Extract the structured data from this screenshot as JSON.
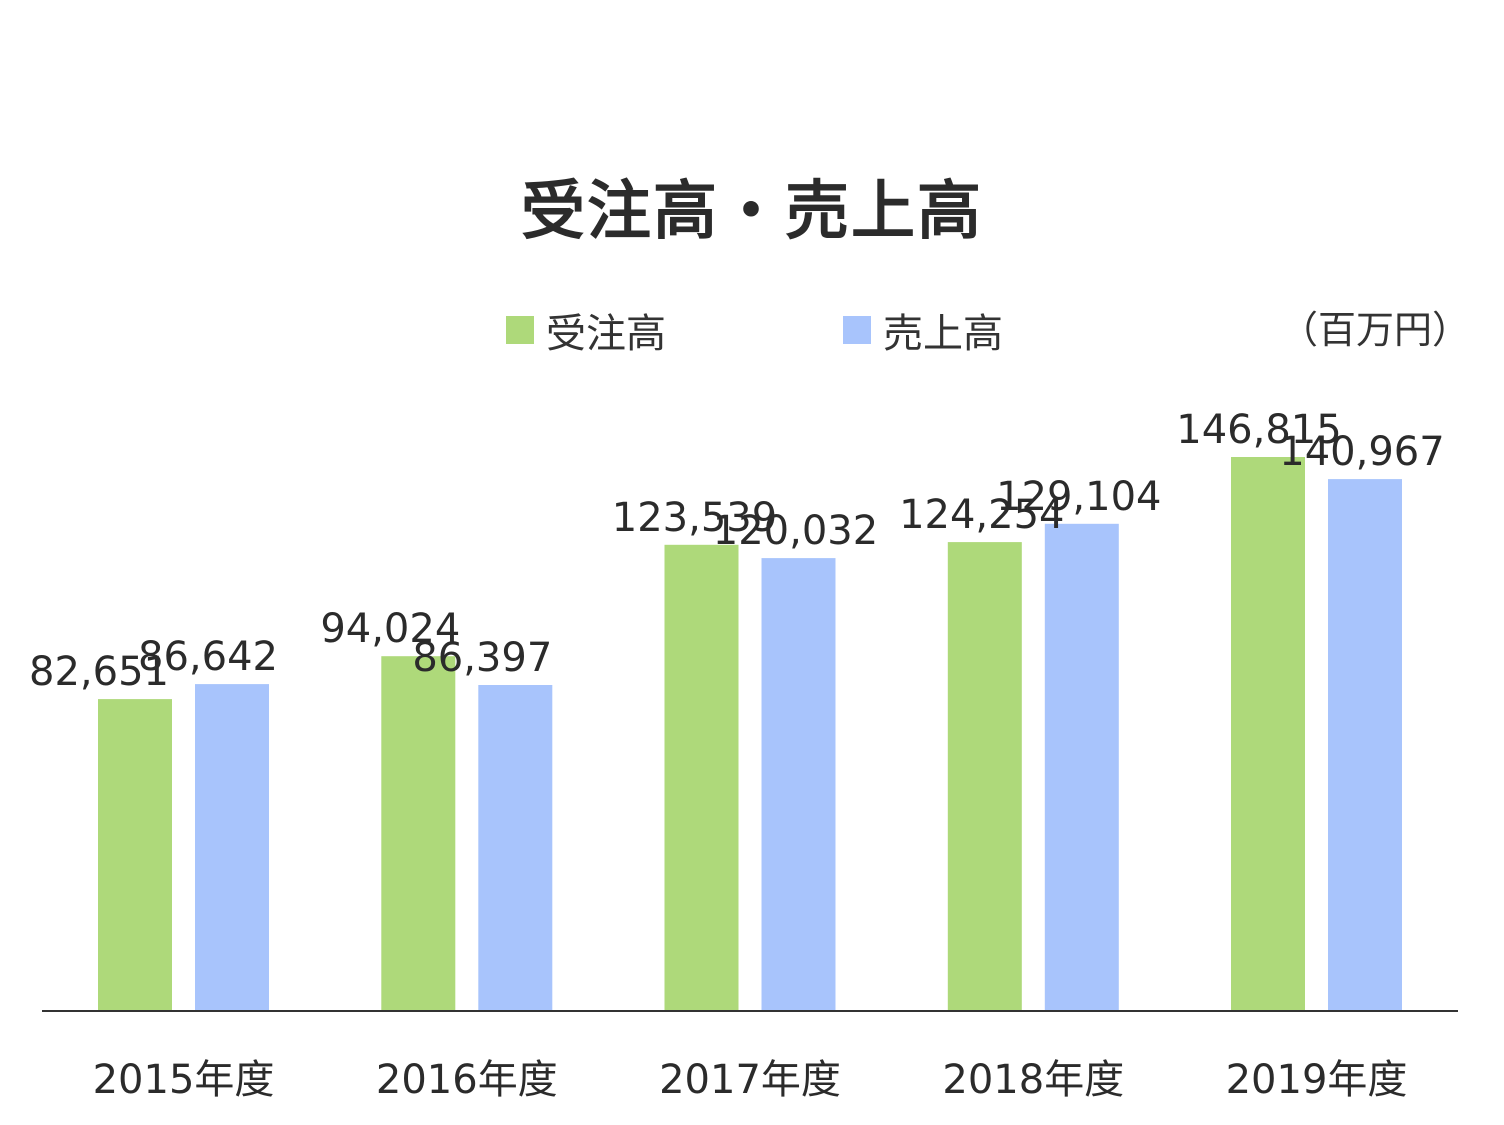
{
  "chart_data": {
    "type": "bar",
    "title": "受注高・売上高",
    "unit": "（百万円）",
    "categories": [
      "2015年度",
      "2016年度",
      "2017年度",
      "2018年度",
      "2019年度"
    ],
    "series": [
      {
        "name": "受注高",
        "color": "#aed97a",
        "values": [
          82651,
          94024,
          123539,
          124254,
          146815
        ],
        "labels": [
          "82,651",
          "94,024",
          "123,539",
          "124,254",
          "146,815"
        ]
      },
      {
        "name": "売上高",
        "color": "#a8c4fc",
        "values": [
          86642,
          86397,
          120032,
          129104,
          140967
        ],
        "labels": [
          "86,642",
          "86,397",
          "120,032",
          "129,104",
          "140,967"
        ]
      }
    ],
    "ylim": [
      0,
      150000
    ],
    "grid": false,
    "legend_position": "top"
  }
}
